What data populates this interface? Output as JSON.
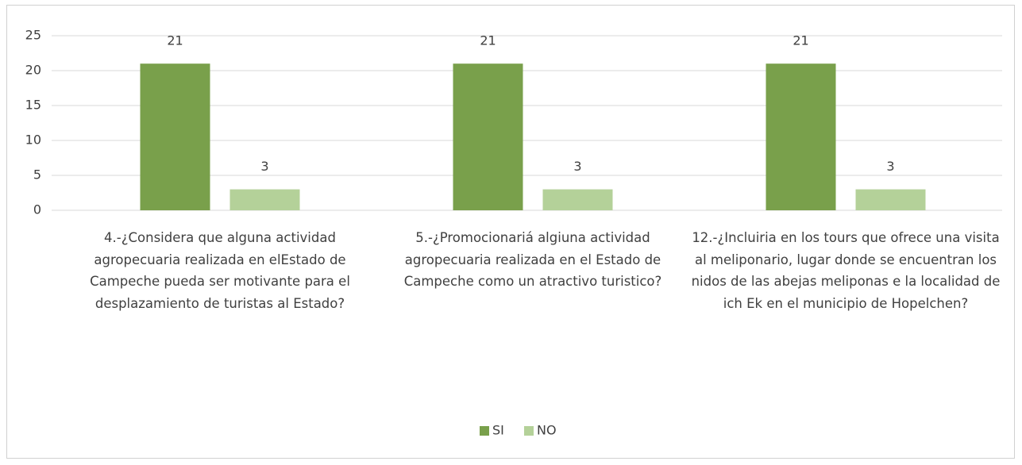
{
  "chart_data": {
    "type": "bar",
    "categories": [
      "4.-¿Considera que alguna actividad agropecuaria realizada en elEstado de Campeche pueda ser motivante para el desplazamiento de turistas al Estado?",
      "5.-¿Promocionariá algiuna actividad agropecuaria realizada en el Estado de Campeche como un atractivo turistico?",
      "12.-¿Incluiria en los tours que ofrece una visita al meliponario, lugar donde se encuentran los nidos de las abejas meliponas e la localidad de ich Ek en el municipio de Hopelchen?"
    ],
    "series": [
      {
        "name": "SI",
        "color": "#79a04b",
        "values": [
          21,
          21,
          21
        ]
      },
      {
        "name": "NO",
        "color": "#b4d199",
        "values": [
          3,
          3,
          3
        ]
      }
    ],
    "ylim": [
      0,
      25
    ],
    "yticks": [
      0,
      5,
      10,
      15,
      20,
      25
    ],
    "grid": true,
    "legend": "bottom"
  }
}
